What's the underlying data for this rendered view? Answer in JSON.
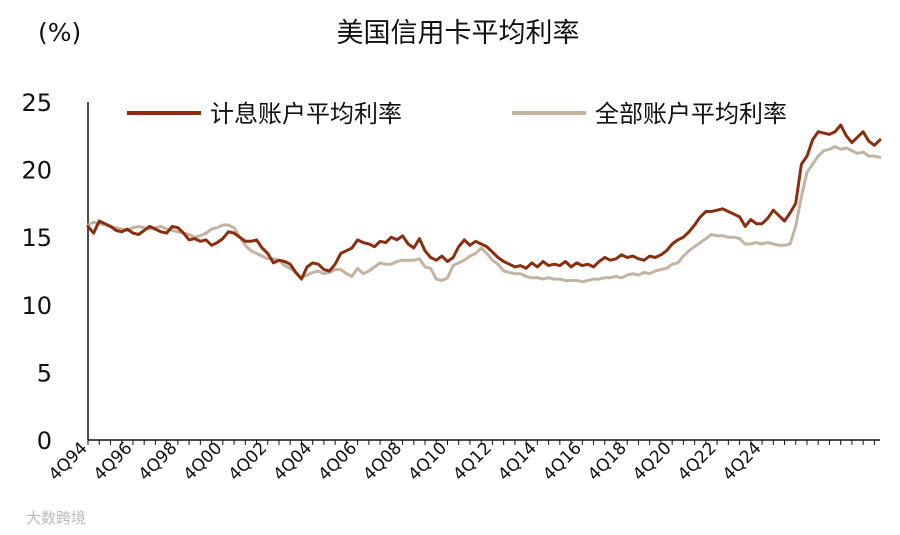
{
  "chart_data": {
    "type": "line",
    "title": "美国信用卡平均利率",
    "y_unit": "(%)",
    "ylim": [
      0,
      25
    ],
    "y_ticks": [
      0,
      5,
      10,
      15,
      20,
      25
    ],
    "x_tick_labels": [
      "4Q94",
      "4Q96",
      "4Q98",
      "4Q00",
      "4Q02",
      "4Q04",
      "4Q06",
      "4Q08",
      "4Q10",
      "4Q12",
      "4Q14",
      "4Q16",
      "4Q18",
      "4Q20",
      "4Q22",
      "4Q24"
    ],
    "x_start_quarter": "4Q94",
    "grid": false,
    "legend": "top",
    "series": [
      {
        "name": "计息账户平均利率",
        "color": "#8B2E0F",
        "values": [
          15.8,
          15.3,
          16.2,
          16.0,
          15.8,
          15.5,
          15.4,
          15.6,
          15.3,
          15.2,
          15.5,
          15.8,
          15.6,
          15.4,
          15.3,
          15.8,
          15.7,
          15.3,
          14.8,
          14.9,
          14.7,
          14.8,
          14.4,
          14.6,
          14.9,
          15.4,
          15.3,
          15.0,
          14.7,
          14.7,
          14.8,
          14.2,
          13.8,
          13.1,
          13.3,
          13.2,
          13.0,
          12.4,
          11.9,
          12.8,
          13.1,
          13.0,
          12.6,
          12.5,
          13.0,
          13.8,
          14.0,
          14.2,
          14.8,
          14.6,
          14.5,
          14.3,
          14.7,
          14.6,
          15.0,
          14.8,
          15.1,
          14.5,
          14.2,
          14.9,
          14.0,
          13.5,
          13.3,
          13.6,
          13.2,
          13.5,
          14.3,
          14.8,
          14.4,
          14.7,
          14.5,
          14.3,
          13.9,
          13.5,
          13.2,
          13.0,
          12.8,
          12.9,
          12.7,
          13.1,
          12.8,
          13.2,
          12.9,
          13.0,
          12.9,
          13.2,
          12.8,
          13.1,
          12.9,
          13.0,
          12.8,
          13.2,
          13.5,
          13.3,
          13.4,
          13.7,
          13.5,
          13.6,
          13.4,
          13.3,
          13.6,
          13.5,
          13.7,
          14.0,
          14.5,
          14.8,
          15.0,
          15.4,
          15.9,
          16.5,
          16.9,
          16.9,
          17.0,
          17.1,
          16.9,
          16.7,
          16.5,
          15.8,
          16.3,
          16.0,
          16.0,
          16.4,
          17.0,
          16.6,
          16.2,
          16.8,
          17.5,
          20.4,
          21.0,
          22.2,
          22.8,
          22.7,
          22.6,
          22.8,
          23.3,
          22.5,
          22.0,
          22.4,
          22.8,
          22.1,
          21.8,
          22.2
        ]
      },
      {
        "name": "全部账户平均利率",
        "color": "#C3B3A2",
        "values": [
          15.9,
          16.1,
          16.0,
          15.9,
          15.8,
          15.7,
          15.6,
          15.5,
          15.7,
          15.8,
          15.7,
          15.6,
          15.7,
          15.8,
          15.6,
          15.5,
          15.4,
          15.3,
          15.2,
          15.0,
          15.1,
          15.3,
          15.6,
          15.7,
          15.9,
          15.9,
          15.7,
          15.0,
          14.4,
          14.0,
          13.8,
          13.6,
          13.4,
          13.4,
          13.3,
          12.9,
          12.7,
          12.4,
          12.0,
          12.2,
          12.4,
          12.5,
          12.3,
          12.4,
          12.6,
          12.6,
          12.3,
          12.1,
          12.7,
          12.3,
          12.5,
          12.8,
          13.1,
          13.0,
          13.0,
          13.2,
          13.3,
          13.3,
          13.3,
          13.4,
          12.8,
          12.7,
          11.9,
          11.8,
          12.0,
          12.9,
          13.1,
          13.3,
          13.6,
          13.8,
          14.2,
          13.8,
          13.3,
          13.0,
          12.5,
          12.4,
          12.3,
          12.3,
          12.1,
          12.0,
          12.0,
          11.9,
          12.0,
          11.9,
          11.9,
          11.8,
          11.8,
          11.8,
          11.7,
          11.8,
          11.9,
          11.9,
          12.0,
          12.0,
          12.1,
          12.0,
          12.2,
          12.3,
          12.2,
          12.4,
          12.3,
          12.5,
          12.6,
          12.7,
          13.0,
          13.1,
          13.6,
          14.0,
          14.3,
          14.6,
          14.9,
          15.2,
          15.1,
          15.1,
          15.0,
          15.0,
          14.9,
          14.5,
          14.5,
          14.6,
          14.5,
          14.6,
          14.5,
          14.4,
          14.4,
          14.5,
          15.8,
          18.0,
          19.8,
          20.4,
          21.0,
          21.4,
          21.5,
          21.7,
          21.5,
          21.6,
          21.4,
          21.2,
          21.3,
          21.0,
          21.0,
          20.9
        ]
      }
    ]
  },
  "watermark": "大数跨境"
}
